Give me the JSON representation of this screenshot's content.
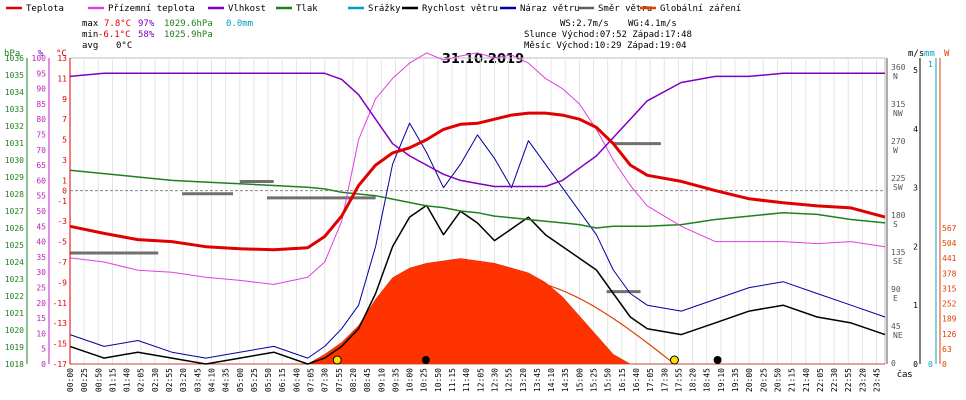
{
  "chart_data": {
    "type": "line",
    "title": "31.10.2019",
    "legend": [
      {
        "name": "Teplota",
        "color": "#e00000"
      },
      {
        "name": "Přízemní teplota",
        "color": "#e040e0"
      },
      {
        "name": "Vlhkost",
        "color": "#8000c0"
      },
      {
        "name": "Tlak",
        "color": "#208020"
      },
      {
        "name": "Srážky",
        "color": "#00a0c0"
      },
      {
        "name": "Rychlost větru",
        "color": "#000000"
      },
      {
        "name": "Náraz větru",
        "color": "#0000a0"
      },
      {
        "name": "Směr větru",
        "color": "#606060"
      },
      {
        "name": "Globální záření",
        "color": "#e04000"
      }
    ],
    "stats": {
      "max": {
        "label": "max",
        "temp": "7.8°C",
        "hum": "97%",
        "press": "1029.6hPa",
        "rain": "0.0mm"
      },
      "min": {
        "label": "min",
        "temp": "-6.1°C",
        "hum": "58%",
        "press": "1025.9hPa"
      },
      "avg": {
        "label": "avg",
        "temp": "0°C"
      },
      "ws": "WS:2.7m/s",
      "wg": "WG:4.1m/s",
      "sun": "Slunce Východ:07:52  Západ:17:48",
      "moon": "Měsíc  Východ:10:29  Západ:19:04"
    },
    "axes": {
      "hpa": {
        "title": "hPa",
        "ticks": [
          "1036",
          "1035",
          "1034",
          "1033",
          "1032",
          "1031",
          "1030",
          "1029",
          "1028",
          "1027",
          "1026",
          "1025",
          "1024",
          "1023",
          "1022",
          "1021",
          "1020",
          "1019",
          "1018"
        ]
      },
      "pct": {
        "title": "%",
        "ticks": [
          "100",
          "95",
          "90",
          "85",
          "80",
          "75",
          "70",
          "65",
          "60",
          "55",
          "50",
          "45",
          "40",
          "35",
          "30",
          "25",
          "20",
          "15",
          "10",
          "5",
          "0"
        ]
      },
      "degc": {
        "title": "°C",
        "ticks": [
          "13",
          "11",
          "9",
          "7",
          "5",
          "3",
          "1",
          "0",
          "-1",
          "-3",
          "-5",
          "-7",
          "-9",
          "-11",
          "-13",
          "-15",
          "-17"
        ]
      },
      "dir": {
        "ticks": [
          "360\nN",
          "315\nNW",
          "270\nW",
          "225\nSW",
          "180\nS",
          "135\nSE",
          "90\nE",
          "45\nNE",
          "0"
        ]
      },
      "ms": {
        "title": "m/s",
        "ticks": [
          "5",
          "4",
          "3",
          "2",
          "1",
          "0"
        ]
      },
      "mm": {
        "title": "mm",
        "ticks": [
          "1",
          "0"
        ]
      },
      "wm2": {
        "title": "W",
        "ticks": [
          "567",
          "504",
          "441",
          "378",
          "315",
          "252",
          "189",
          "126",
          "63",
          "0"
        ]
      },
      "x_title": "čas",
      "x_ticks": [
        "00:00",
        "00:25",
        "00:50",
        "01:15",
        "01:40",
        "02:05",
        "02:30",
        "02:55",
        "03:20",
        "03:45",
        "04:10",
        "04:35",
        "05:00",
        "05:25",
        "05:50",
        "06:15",
        "06:40",
        "07:05",
        "07:30",
        "07:55",
        "08:20",
        "08:45",
        "09:10",
        "09:35",
        "10:00",
        "10:25",
        "10:50",
        "11:15",
        "11:40",
        "12:05",
        "12:30",
        "12:55",
        "13:20",
        "13:45",
        "14:10",
        "14:35",
        "15:00",
        "15:25",
        "15:50",
        "16:15",
        "16:40",
        "17:05",
        "17:30",
        "17:55",
        "18:20",
        "18:45",
        "19:10",
        "19:35",
        "20:00",
        "20:25",
        "20:50",
        "21:15",
        "21:40",
        "22:05",
        "22:30",
        "22:55",
        "23:20",
        "23:45"
      ]
    },
    "x_hours": [
      0,
      1,
      2,
      3,
      4,
      5,
      6,
      7,
      7.5,
      8,
      8.5,
      9,
      9.5,
      10,
      10.5,
      11,
      11.5,
      12,
      12.5,
      13,
      13.5,
      14,
      14.5,
      15,
      15.5,
      16,
      16.5,
      17,
      18,
      19,
      20,
      21,
      22,
      23,
      24
    ],
    "series": [
      {
        "name": "Teplota",
        "unit": "°C",
        "values": [
          -3.5,
          -4.2,
          -4.8,
          -5.0,
          -5.5,
          -5.7,
          -5.8,
          -5.6,
          -4.5,
          -2.5,
          0.5,
          2.5,
          3.7,
          4.2,
          5.0,
          6.0,
          6.5,
          6.6,
          7.0,
          7.4,
          7.6,
          7.6,
          7.4,
          7.0,
          6.2,
          4.6,
          2.5,
          1.5,
          0.9,
          0.0,
          -0.8,
          -1.2,
          -1.5,
          -1.7,
          -2.6
        ]
      },
      {
        "name": "Přízemní teplota",
        "unit": "°C",
        "values": [
          -6.6,
          -7.0,
          -7.8,
          -8.0,
          -8.5,
          -8.8,
          -9.2,
          -8.5,
          -7.0,
          -3.0,
          5.0,
          9.0,
          11.0,
          12.5,
          13.5,
          12.8,
          13.2,
          13.5,
          13.0,
          13.3,
          12.5,
          11.0,
          10.0,
          8.5,
          6.0,
          3.0,
          0.5,
          -1.5,
          -3.5,
          -5.0,
          -5.0,
          -5.0,
          -5.2,
          -5.0,
          -5.5
        ]
      },
      {
        "name": "Vlhkost",
        "unit": "%",
        "values": [
          94,
          95,
          95,
          95,
          95,
          95,
          95,
          95,
          95,
          93,
          88,
          80,
          72,
          68,
          65,
          62,
          60,
          59,
          58,
          58,
          58,
          58,
          60,
          64,
          68,
          74,
          80,
          86,
          92,
          94,
          94,
          95,
          95,
          95,
          95
        ]
      },
      {
        "name": "Tlak",
        "unit": "hPa",
        "values": [
          1029.4,
          1029.2,
          1029.0,
          1028.8,
          1028.7,
          1028.6,
          1028.5,
          1028.4,
          1028.3,
          1028.1,
          1028.0,
          1027.9,
          1027.7,
          1027.5,
          1027.3,
          1027.2,
          1027.0,
          1026.9,
          1026.7,
          1026.6,
          1026.5,
          1026.4,
          1026.3,
          1026.2,
          1026.0,
          1026.1,
          1026.1,
          1026.1,
          1026.2,
          1026.5,
          1026.7,
          1026.9,
          1026.8,
          1026.5,
          1026.3
        ]
      },
      {
        "name": "Srážky",
        "unit": "mm",
        "values": [
          0,
          0,
          0,
          0,
          0,
          0,
          0,
          0,
          0,
          0,
          0,
          0,
          0,
          0,
          0,
          0,
          0,
          0,
          0,
          0,
          0,
          0,
          0,
          0,
          0,
          0,
          0,
          0,
          0,
          0,
          0,
          0,
          0,
          0,
          0
        ]
      },
      {
        "name": "Rychlost větru",
        "unit": "m/s",
        "values": [
          0.3,
          0.1,
          0.2,
          0.1,
          0,
          0.1,
          0.2,
          0,
          0.1,
          0.3,
          0.6,
          1.2,
          2.0,
          2.5,
          2.7,
          2.2,
          2.6,
          2.4,
          2.1,
          2.3,
          2.5,
          2.2,
          2.0,
          1.8,
          1.6,
          1.2,
          0.8,
          0.6,
          0.5,
          0.7,
          0.9,
          1.0,
          0.8,
          0.7,
          0.5
        ]
      },
      {
        "name": "Náraz větru",
        "unit": "m/s",
        "values": [
          0.5,
          0.3,
          0.4,
          0.2,
          0.1,
          0.2,
          0.3,
          0.1,
          0.3,
          0.6,
          1.0,
          2.0,
          3.4,
          4.1,
          3.6,
          3.0,
          3.4,
          3.9,
          3.5,
          3.0,
          3.8,
          3.4,
          3.0,
          2.6,
          2.2,
          1.6,
          1.2,
          1.0,
          0.9,
          1.1,
          1.3,
          1.4,
          1.2,
          1.0,
          0.8
        ]
      },
      {
        "name": "Globální záření",
        "unit": "W/m2",
        "values": [
          0,
          0,
          0,
          0,
          0,
          0,
          0,
          0,
          40,
          90,
          160,
          270,
          360,
          400,
          420,
          430,
          440,
          430,
          420,
          400,
          380,
          340,
          280,
          200,
          120,
          40,
          0,
          0,
          0,
          0,
          0,
          0,
          0,
          0,
          0
        ]
      }
    ],
    "wind_dir_segments": [
      {
        "from": 0,
        "to": 2.6,
        "deg": 135
      },
      {
        "from": 3.3,
        "to": 4.8,
        "deg": 207
      },
      {
        "from": 5.0,
        "to": 6.0,
        "deg": 222
      },
      {
        "from": 5.8,
        "to": 9.0,
        "deg": 202
      },
      {
        "from": 15.8,
        "to": 16.8,
        "deg": 88
      },
      {
        "from": 16.0,
        "to": 17.4,
        "deg": 268
      }
    ],
    "grid": true
  }
}
